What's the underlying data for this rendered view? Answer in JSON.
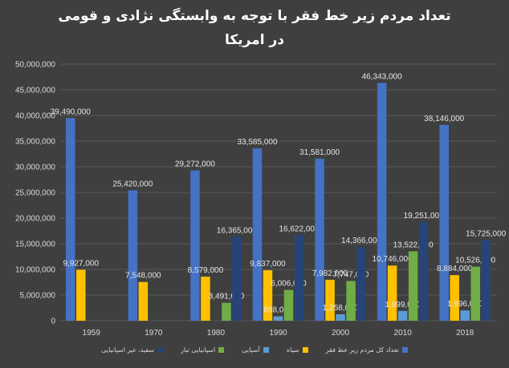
{
  "chart_data": {
    "type": "bar",
    "title_line1": "تعداد مردم زیر خط فقر با توجه به وابستگی نژادی و قومی",
    "title_line2": "در امریکا",
    "categories": [
      "1959",
      "1970",
      "1980",
      "1990",
      "2000",
      "2010",
      "2018"
    ],
    "ylim": [
      0,
      50000000
    ],
    "yticks": [
      "0",
      "5,000,000",
      "10,000,000",
      "15,000,000",
      "20,000,000",
      "25,000,000",
      "30,000,000",
      "35,000,000",
      "40,000,000",
      "45,000,000",
      "50,000,000"
    ],
    "grid": true,
    "legend_position": "bottom",
    "series": [
      {
        "name": "تعداد کل مردم زیر خط فقر",
        "color": "#4472c4",
        "values": [
          39490000,
          25420000,
          29272000,
          33585000,
          31581000,
          46343000,
          38146000
        ],
        "labels": [
          "39,490,000",
          "25,420,000",
          "29,272,000",
          "33,585,000",
          "31,581,000",
          "46,343,000",
          "38,146,000"
        ]
      },
      {
        "name": "سیاه",
        "color": "#ffc000",
        "values": [
          9927000,
          7548000,
          8579000,
          9837000,
          7982000,
          10746000,
          8884000
        ],
        "labels": [
          "9,927,000",
          "7,548,000",
          "8,579,000",
          "9,837,000",
          "7,982,000",
          "10,746,000",
          "8,884,000"
        ]
      },
      {
        "name": "آسیایی",
        "color": "#5b9bd5",
        "values": [
          null,
          null,
          null,
          858000,
          1258000,
          1899000,
          1996000
        ],
        "labels": [
          "",
          "",
          "",
          "858,000",
          "1,258,000",
          "1,899,000",
          "1,996,000"
        ]
      },
      {
        "name": "اسپانیایی تبار",
        "color": "#70ad47",
        "values": [
          null,
          null,
          3491000,
          6006000,
          7747000,
          13522000,
          10526000
        ],
        "labels": [
          "",
          "",
          "3,491,000",
          "6,006,000",
          "7,747,000",
          "13,522,000",
          "10,526,000"
        ]
      },
      {
        "name": "سفید، غیر اسپانیایی",
        "color": "#264478",
        "values": [
          null,
          null,
          16365000,
          16622000,
          14366000,
          19251000,
          15725000
        ],
        "labels": [
          "",
          "",
          "16,365,000",
          "16,622,000",
          "14,366,000",
          "19,251,000",
          "15,725,000"
        ]
      }
    ]
  }
}
